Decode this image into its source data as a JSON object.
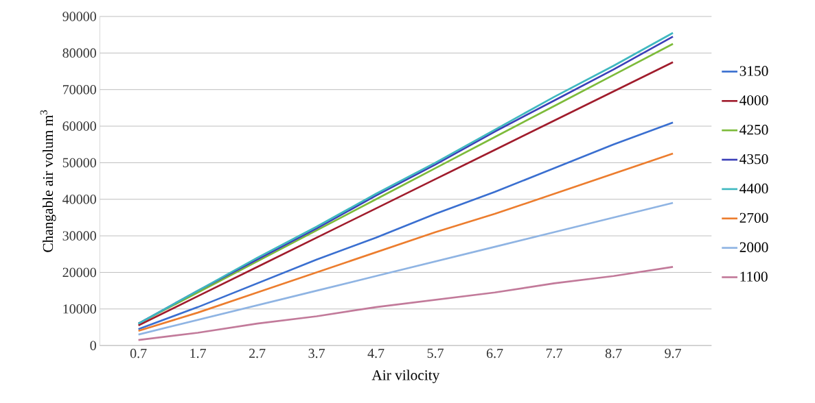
{
  "chart_data": {
    "type": "line",
    "xlabel": "Air vilocity",
    "ylabel": "Changable air volum m$^{3}$",
    "categories": [
      "0.7",
      "1.7",
      "2.7",
      "3.7",
      "4.7",
      "5.7",
      "6.7",
      "7.7",
      "8.7",
      "9.7"
    ],
    "ylim": [
      0,
      90000
    ],
    "yticks": [
      0,
      10000,
      20000,
      30000,
      40000,
      50000,
      60000,
      70000,
      80000,
      90000
    ],
    "grid": "y",
    "legend": "right",
    "marker": "none",
    "line_style": "solid",
    "series": [
      {
        "name": "3150",
        "color": "#3a6fd0",
        "values": [
          4500,
          10500,
          17000,
          23500,
          29500,
          36000,
          42000,
          48500,
          55000,
          61000
        ]
      },
      {
        "name": "4000",
        "color": "#a01c2c",
        "values": [
          5500,
          13500,
          21500,
          29500,
          37500,
          45500,
          53500,
          61500,
          69500,
          77500
        ]
      },
      {
        "name": "4250",
        "color": "#7dbb3a",
        "values": [
          6000,
          14500,
          23000,
          31500,
          40000,
          48500,
          57000,
          65500,
          74000,
          82500
        ]
      },
      {
        "name": "4350",
        "color": "#3b3fb8",
        "values": [
          6000,
          15000,
          23500,
          32000,
          41000,
          49500,
          58500,
          67000,
          75500,
          84500
        ]
      },
      {
        "name": "4400",
        "color": "#3fb8c0",
        "values": [
          6000,
          15000,
          24000,
          32500,
          41500,
          50000,
          59000,
          68000,
          76500,
          85500
        ]
      },
      {
        "name": "2700",
        "color": "#ec7d2e",
        "values": [
          4000,
          9000,
          14500,
          20000,
          25500,
          31000,
          36000,
          41500,
          47000,
          52500
        ]
      },
      {
        "name": "2000",
        "color": "#8fb4e3",
        "values": [
          3000,
          7000,
          11000,
          15000,
          19000,
          23000,
          27000,
          31000,
          35000,
          39000
        ]
      },
      {
        "name": "1100",
        "color": "#c27a9a",
        "values": [
          1500,
          3500,
          6000,
          8000,
          10500,
          12500,
          14500,
          17000,
          19000,
          21500
        ]
      }
    ]
  }
}
